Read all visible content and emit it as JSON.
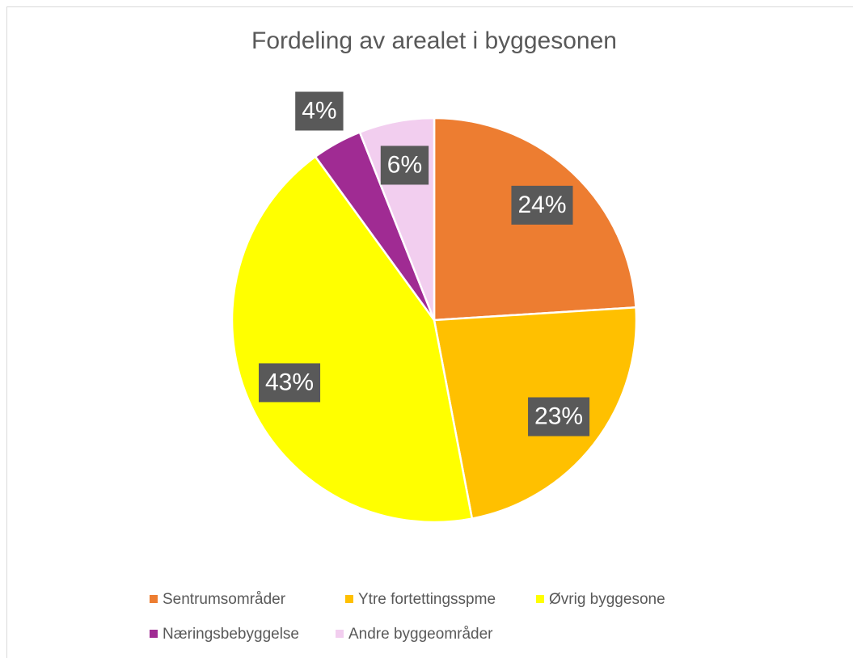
{
  "chart_data": {
    "type": "pie",
    "title": "Fordeling av arealet i byggesonen",
    "categories": [
      "Sentrumsområder",
      "Ytre fortettingsspme",
      "Øvrig byggesone",
      "Næringsbebyggelse",
      "Andre byggeområder"
    ],
    "values": [
      24,
      23,
      43,
      4,
      6
    ],
    "value_labels": [
      "24%",
      "23%",
      "43%",
      "4%",
      "6%"
    ],
    "colors": [
      "#ED7D31",
      "#FFC000",
      "#FFFF00",
      "#A02B93",
      "#F2CEEF"
    ],
    "legend": "bottom"
  }
}
